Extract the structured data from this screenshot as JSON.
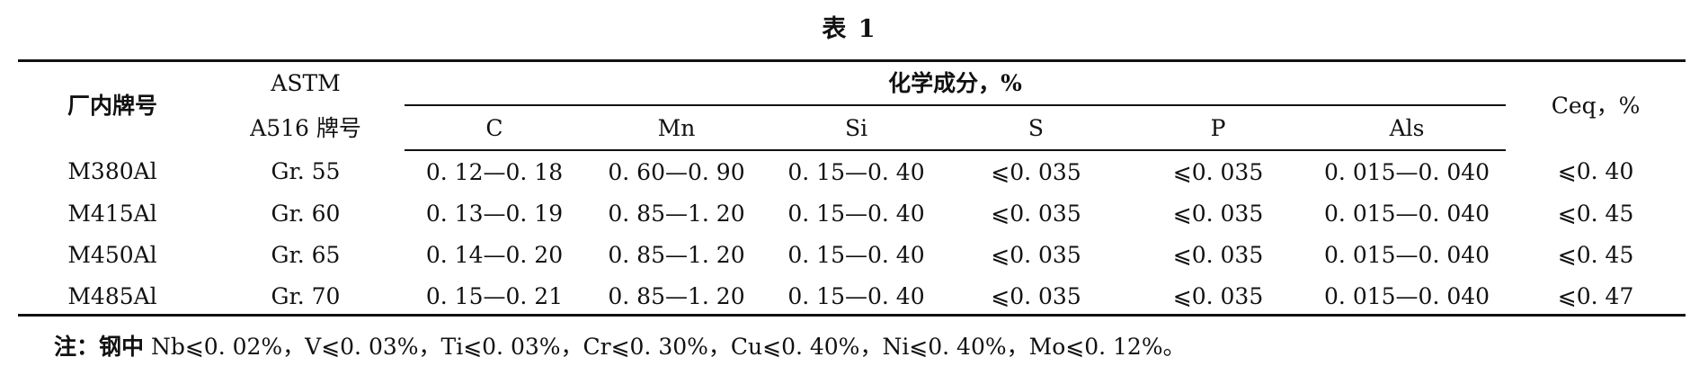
{
  "title": "表 1",
  "header": {
    "col_grade": "厂内牌号",
    "col_astm_line1": "ASTM",
    "col_astm_line2": "A516 牌号",
    "group_chem": "化学成分，%",
    "col_ceq": "Ceq，%",
    "chem_cols": [
      "C",
      "Mn",
      "Si",
      "S",
      "P",
      "Als"
    ]
  },
  "rows": [
    [
      "M380Al",
      "Gr. 55",
      "0. 12—0. 18",
      "0. 60—0. 90",
      "0. 15—0. 40",
      "⩽0. 035",
      "⩽0. 035",
      "0. 015—0. 040",
      "⩽0. 40"
    ],
    [
      "M415Al",
      "Gr. 60",
      "0. 13—0. 19",
      "0. 85—1. 20",
      "0. 15—0. 40",
      "⩽0. 035",
      "⩽0. 035",
      "0. 015—0. 040",
      "⩽0. 45"
    ],
    [
      "M450Al",
      "Gr. 65",
      "0. 14—0. 20",
      "0. 85—1. 20",
      "0. 15—0. 40",
      "⩽0. 035",
      "⩽0. 035",
      "0. 015—0. 040",
      "⩽0. 45"
    ],
    [
      "M485Al",
      "Gr. 70",
      "0. 15—0. 21",
      "0. 85—1. 20",
      "0. 15—0. 40",
      "⩽0. 035",
      "⩽0. 035",
      "0. 015—0. 040",
      "⩽0. 47"
    ]
  ],
  "note": {
    "label": "注：钢中",
    "text": " Nb⩽0. 02%，V⩽0. 03%，Ti⩽0. 03%，Cr⩽0. 30%，Cu⩽0. 40%，Ni⩽0. 40%，Mo⩽0. 12%。"
  }
}
